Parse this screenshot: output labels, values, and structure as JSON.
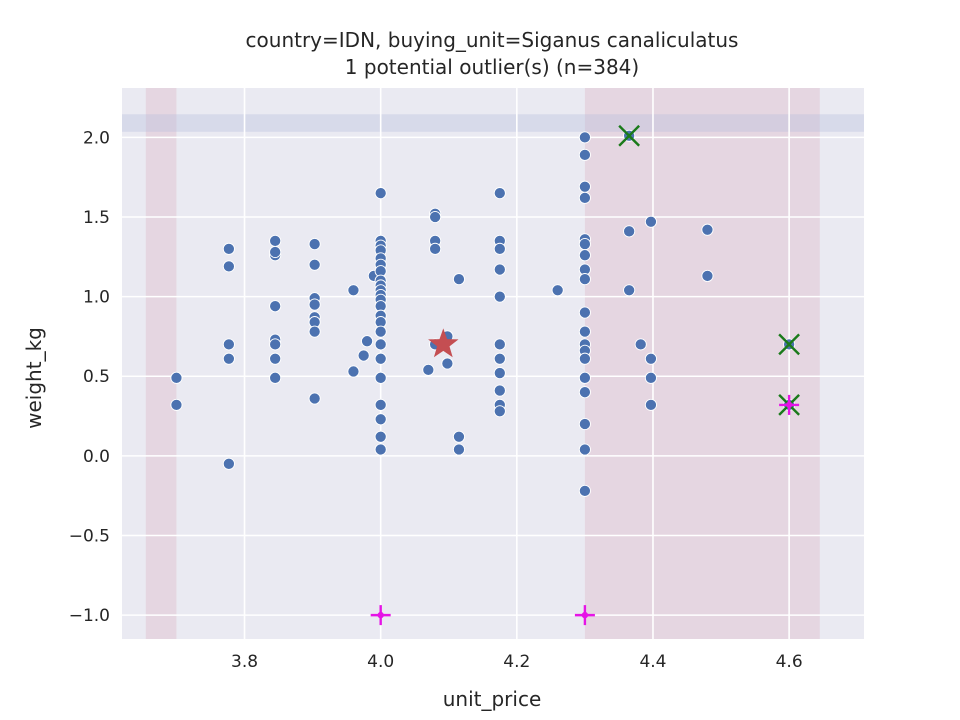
{
  "chart_data": {
    "type": "scatter",
    "title": "country=IDN, buying_unit=Siganus canaliculatus",
    "subtitle": "1 potential outlier(s) (n=384)",
    "xlabel": "unit_price",
    "ylabel": "weight_kg",
    "xlim": [
      3.62,
      4.71
    ],
    "ylim": [
      -1.15,
      2.31
    ],
    "xticks": [
      3.8,
      4.0,
      4.2,
      4.4,
      4.6
    ],
    "xtick_labels": [
      "3.8",
      "4.0",
      "4.2",
      "4.4",
      "4.6"
    ],
    "yticks": [
      -1.0,
      -0.5,
      0.0,
      0.5,
      1.0,
      1.5,
      2.0
    ],
    "ytick_labels": [
      "−1.0",
      "−0.5",
      "0.0",
      "0.5",
      "1.0",
      "1.5",
      "2.0"
    ],
    "grid": true,
    "colors": {
      "background": "#eaeaf2",
      "grid": "#ffffff",
      "points": "#4c72b0",
      "band_vertical": "#d9aab8",
      "band_horizontal": "#b4bedc",
      "star": "#c44e52",
      "outlier_x": "#1a7a1a",
      "plus_markers": "#e614e6"
    },
    "bands": {
      "vertical": [
        [
          3.655,
          3.7
        ],
        [
          4.3,
          4.645
        ]
      ],
      "horizontal": [
        [
          2.035,
          2.145
        ]
      ]
    },
    "points": [
      [
        3.7,
        0.49
      ],
      [
        3.7,
        0.32
      ],
      [
        3.777,
        1.3
      ],
      [
        3.777,
        1.19
      ],
      [
        3.777,
        0.7
      ],
      [
        3.777,
        0.61
      ],
      [
        3.777,
        -0.05
      ],
      [
        3.845,
        1.35
      ],
      [
        3.845,
        1.26
      ],
      [
        3.845,
        1.28
      ],
      [
        3.845,
        0.94
      ],
      [
        3.845,
        0.73
      ],
      [
        3.845,
        0.7
      ],
      [
        3.845,
        0.61
      ],
      [
        3.845,
        0.49
      ],
      [
        3.903,
        1.33
      ],
      [
        3.903,
        1.2
      ],
      [
        3.903,
        0.99
      ],
      [
        3.903,
        0.95
      ],
      [
        3.903,
        0.87
      ],
      [
        3.903,
        0.84
      ],
      [
        3.903,
        0.78
      ],
      [
        3.903,
        0.36
      ],
      [
        3.96,
        1.04
      ],
      [
        3.96,
        0.53
      ],
      [
        3.975,
        0.63
      ],
      [
        3.98,
        0.72
      ],
      [
        3.99,
        1.13
      ],
      [
        4.0,
        1.65
      ],
      [
        4.0,
        1.35
      ],
      [
        4.0,
        1.32
      ],
      [
        4.0,
        1.29
      ],
      [
        4.0,
        1.24
      ],
      [
        4.0,
        1.2
      ],
      [
        4.0,
        1.16
      ],
      [
        4.0,
        1.1
      ],
      [
        4.0,
        1.07
      ],
      [
        4.0,
        1.04
      ],
      [
        4.0,
        1.01
      ],
      [
        4.0,
        0.98
      ],
      [
        4.0,
        0.94
      ],
      [
        4.0,
        0.88
      ],
      [
        4.0,
        0.84
      ],
      [
        4.0,
        0.78
      ],
      [
        4.0,
        0.7
      ],
      [
        4.0,
        0.61
      ],
      [
        4.0,
        0.49
      ],
      [
        4.0,
        0.32
      ],
      [
        4.0,
        0.23
      ],
      [
        4.0,
        0.12
      ],
      [
        4.0,
        0.04
      ],
      [
        4.07,
        0.54
      ],
      [
        4.08,
        1.52
      ],
      [
        4.08,
        1.5
      ],
      [
        4.08,
        1.35
      ],
      [
        4.08,
        1.3
      ],
      [
        4.08,
        0.7
      ],
      [
        4.098,
        0.75
      ],
      [
        4.098,
        0.58
      ],
      [
        4.115,
        1.11
      ],
      [
        4.115,
        0.12
      ],
      [
        4.115,
        0.04
      ],
      [
        4.175,
        1.65
      ],
      [
        4.175,
        1.35
      ],
      [
        4.175,
        1.3
      ],
      [
        4.175,
        1.17
      ],
      [
        4.175,
        1.0
      ],
      [
        4.175,
        0.7
      ],
      [
        4.175,
        0.61
      ],
      [
        4.175,
        0.52
      ],
      [
        4.175,
        0.41
      ],
      [
        4.175,
        0.32
      ],
      [
        4.175,
        0.28
      ],
      [
        4.26,
        1.04
      ],
      [
        4.3,
        2.0
      ],
      [
        4.3,
        1.89
      ],
      [
        4.3,
        1.69
      ],
      [
        4.3,
        1.62
      ],
      [
        4.3,
        1.36
      ],
      [
        4.3,
        1.33
      ],
      [
        4.3,
        1.26
      ],
      [
        4.3,
        1.17
      ],
      [
        4.3,
        1.11
      ],
      [
        4.3,
        0.9
      ],
      [
        4.3,
        0.78
      ],
      [
        4.3,
        0.7
      ],
      [
        4.3,
        0.66
      ],
      [
        4.3,
        0.61
      ],
      [
        4.3,
        0.49
      ],
      [
        4.3,
        0.4
      ],
      [
        4.3,
        0.2
      ],
      [
        4.3,
        0.04
      ],
      [
        4.3,
        -0.22
      ],
      [
        4.365,
        2.01
      ],
      [
        4.365,
        1.41
      ],
      [
        4.365,
        1.04
      ],
      [
        4.382,
        0.7
      ],
      [
        4.397,
        1.47
      ],
      [
        4.397,
        0.61
      ],
      [
        4.397,
        0.49
      ],
      [
        4.397,
        0.32
      ],
      [
        4.48,
        1.42
      ],
      [
        4.48,
        1.13
      ],
      [
        4.6,
        0.7
      ],
      [
        4.6,
        0.32
      ]
    ],
    "star": [
      4.092,
      0.7
    ],
    "outlier_x_markers": [
      [
        4.365,
        2.01
      ],
      [
        4.6,
        0.7
      ],
      [
        4.6,
        0.32
      ]
    ],
    "plus_markers": [
      [
        4.0,
        -1.0
      ],
      [
        4.3,
        -1.0
      ],
      [
        4.6,
        0.32
      ]
    ]
  }
}
